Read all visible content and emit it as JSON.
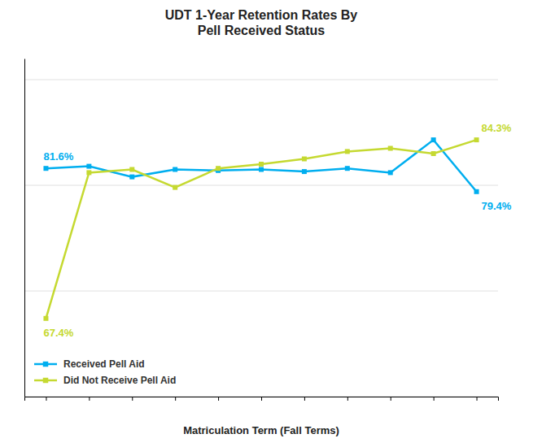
{
  "chart_data": {
    "type": "line",
    "title": "UDT 1-Year Retention Rates By\nPell Received Status",
    "xlabel": "Matriculation Term (Fall Terms)",
    "categories": [
      null,
      null,
      null,
      null,
      null,
      null,
      null,
      null,
      null,
      null,
      null
    ],
    "series": [
      {
        "name": "Received Pell Aid",
        "color": "#00AEEF",
        "marker": "square",
        "values": [
          81.6,
          81.8,
          80.8,
          81.5,
          81.4,
          81.5,
          81.3,
          81.6,
          81.2,
          84.3,
          79.4
        ],
        "value_labels": [
          "81.6%",
          null,
          null,
          null,
          null,
          null,
          null,
          null,
          null,
          null,
          "79.4%"
        ]
      },
      {
        "name": "Did Not Receive Pell Aid",
        "color": "#C5D931",
        "marker": "square",
        "values": [
          67.4,
          81.2,
          81.5,
          79.8,
          81.6,
          82.0,
          82.5,
          83.2,
          83.5,
          83.0,
          84.3
        ],
        "value_labels": [
          "67.4%",
          null,
          null,
          null,
          null,
          null,
          null,
          null,
          null,
          null,
          "84.3%"
        ]
      }
    ],
    "ylim": [
      60,
      92
    ],
    "yticks": [
      60,
      70,
      80,
      90
    ],
    "grid": true,
    "legend": "lower left",
    "tick_labels": false,
    "data_labels": true
  }
}
